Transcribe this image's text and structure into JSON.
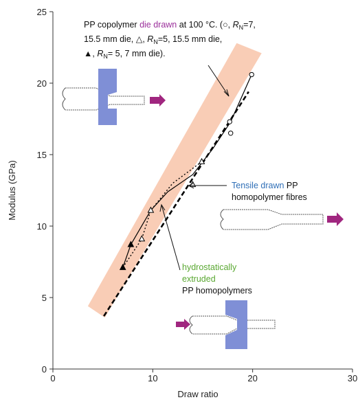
{
  "chart_data": {
    "type": "scatter",
    "x_label": "Draw ratio",
    "y_label": "Modulus (GPa)",
    "xlim": [
      0,
      30
    ],
    "xticks": [
      0,
      10,
      20,
      30
    ],
    "ylim": [
      0,
      25
    ],
    "yticks": [
      0,
      5,
      10,
      15,
      20,
      25
    ],
    "band": {
      "color": "#f9cdb6",
      "x": [
        3.5,
        5.2,
        20.9,
        18.4
      ],
      "y": [
        4.4,
        3.6,
        22.1,
        22.8
      ]
    },
    "series": [
      {
        "marker": "circle-open",
        "color": "#000000",
        "x": [
          19.9,
          17.7,
          17.8
        ],
        "values": [
          20.6,
          17.3,
          16.5
        ]
      },
      {
        "marker": "triangle-open",
        "color": "#000000",
        "x": [
          14.9,
          14.0,
          9.8,
          8.9
        ],
        "values": [
          14.5,
          12.9,
          11.1,
          9.1
        ]
      },
      {
        "marker": "triangle-filled",
        "color": "#000000",
        "x": [
          7.8,
          7.0
        ],
        "values": [
          8.7,
          7.1
        ]
      }
    ],
    "lines": [
      {
        "style": "solid",
        "color": "#000000",
        "x": [
          7.0,
          7.8,
          9.8,
          11.5,
          14.0,
          16.0,
          17.8,
          19.9
        ],
        "values": [
          7.1,
          8.7,
          11.1,
          12.4,
          13.6,
          15.4,
          17.3,
          20.6
        ]
      },
      {
        "style": "dotted",
        "color": "#000000",
        "x": [
          7.0,
          8.9,
          9.8,
          12.0,
          14.9
        ],
        "values": [
          7.1,
          9.1,
          11.1,
          13.0,
          14.5
        ]
      },
      {
        "style": "dashed",
        "color": "#000000",
        "x": [
          5.1,
          19.6
        ],
        "values": [
          3.7,
          19.4
        ]
      }
    ],
    "copolymer_note": [
      "PP copolymer ",
      "die drawn",
      " at 100 °C. (○, ",
      "R",
      "N",
      "=7,",
      "15.5 mm die, △, ",
      "R",
      "N",
      "=5, 15.5 mm die,",
      "▲, ",
      "R",
      "N",
      "= 5, 7 mm die)."
    ],
    "tensile_note": [
      "Tensile drawn",
      " PP",
      "homopolymer fibres"
    ],
    "hydro_note": [
      "hydrostatically",
      "extruded",
      "PP homopolymers"
    ]
  }
}
